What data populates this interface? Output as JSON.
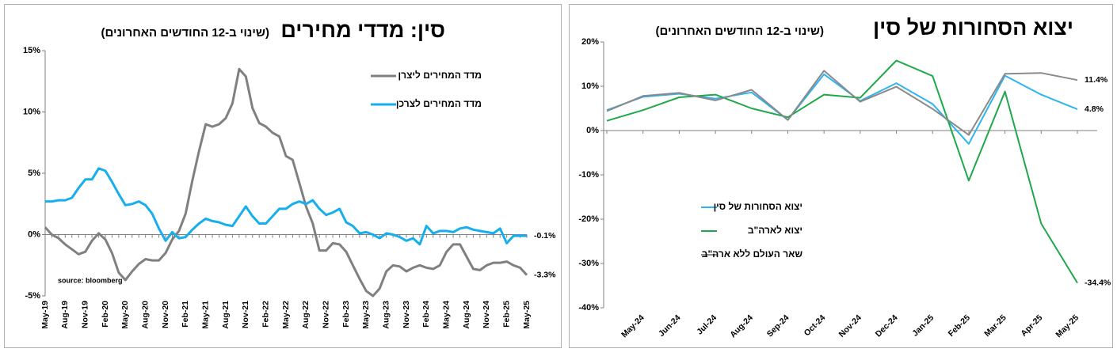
{
  "chart_data": [
    {
      "type": "line",
      "title": "סין: מדדי מחירים",
      "subtitle": "(שינוי ב-12 החודשים האחרונים)",
      "source": "source: bloomberg",
      "legend": "upper right",
      "categories": [
        "May-19",
        null,
        null,
        "Aug-19",
        null,
        null,
        "Nov-19",
        null,
        null,
        "Feb-20",
        null,
        null,
        "May-20",
        null,
        null,
        "Aug-20",
        null,
        null,
        "Nov-20",
        null,
        null,
        "Feb-21",
        null,
        null,
        "May-21",
        null,
        null,
        "Aug-21",
        null,
        null,
        "Nov-21",
        null,
        null,
        "Feb-22",
        null,
        null,
        "May-22",
        null,
        null,
        "Aug-22",
        null,
        null,
        "Nov-22",
        null,
        null,
        "Feb-23",
        null,
        null,
        "May-23",
        null,
        null,
        "Aug-23",
        null,
        null,
        "Nov-23",
        null,
        null,
        "Feb-24",
        null,
        null,
        "May-24",
        null,
        null,
        "Aug-24",
        null,
        null,
        "Nov-24",
        null,
        null,
        "Feb-25",
        null,
        null,
        "May-25"
      ],
      "ylim": [
        -5,
        15
      ],
      "yticks": [
        {
          "value": -5,
          "label": "-5%"
        },
        {
          "value": 0,
          "label": "0%"
        },
        {
          "value": 5,
          "label": "5%"
        },
        {
          "value": 10,
          "label": "10%"
        },
        {
          "value": 15,
          "label": "15%"
        }
      ],
      "series": [
        {
          "name": "מדד המחירים ליצרן",
          "color": "#808080",
          "values": [
            0.6,
            0.0,
            -0.3,
            -0.8,
            -1.2,
            -1.6,
            -1.4,
            -0.5,
            0.1,
            -0.4,
            -1.5,
            -3.1,
            -3.7,
            -3.0,
            -2.4,
            -2.0,
            -2.1,
            -2.1,
            -1.5,
            -0.4,
            0.3,
            1.7,
            4.4,
            6.8,
            9.0,
            8.8,
            9.0,
            9.5,
            10.7,
            13.5,
            12.9,
            10.3,
            9.1,
            8.8,
            8.3,
            8.0,
            6.4,
            6.1,
            4.2,
            2.3,
            0.9,
            -1.3,
            -1.3,
            -0.7,
            -0.8,
            -1.4,
            -2.5,
            -3.6,
            -4.6,
            -5.0,
            -4.4,
            -3.0,
            -2.5,
            -2.6,
            -3.0,
            -2.7,
            -2.5,
            -2.7,
            -2.8,
            -2.5,
            -1.4,
            -0.8,
            -0.8,
            -1.8,
            -2.8,
            -2.9,
            -2.5,
            -2.3,
            -2.3,
            -2.2,
            -2.5,
            -2.7,
            -3.3
          ],
          "value_labels": [
            null,
            null,
            null,
            null,
            null,
            null,
            null,
            null,
            null,
            null,
            null,
            null,
            null,
            null,
            null,
            null,
            null,
            null,
            null,
            null,
            null,
            null,
            null,
            null,
            null,
            null,
            null,
            null,
            null,
            null,
            null,
            null,
            null,
            null,
            null,
            null,
            null,
            null,
            null,
            null,
            null,
            null,
            null,
            null,
            null,
            null,
            null,
            null,
            null,
            null,
            null,
            null,
            null,
            null,
            null,
            null,
            null,
            null,
            null,
            null,
            null,
            null,
            null,
            null,
            null,
            null,
            null,
            null,
            null,
            null,
            null,
            null,
            "-3.3%"
          ]
        },
        {
          "name": "מדד המחירים לצרכן",
          "color": "#17aeee",
          "values": [
            2.7,
            2.7,
            2.8,
            2.8,
            3.0,
            3.8,
            4.5,
            4.5,
            5.4,
            5.2,
            4.3,
            3.3,
            2.4,
            2.5,
            2.7,
            2.4,
            1.7,
            0.5,
            -0.5,
            0.2,
            -0.3,
            -0.2,
            0.4,
            0.9,
            1.3,
            1.1,
            1.0,
            0.8,
            0.7,
            1.5,
            2.3,
            1.5,
            0.9,
            0.9,
            1.5,
            2.1,
            2.1,
            2.5,
            2.7,
            2.5,
            2.8,
            2.1,
            1.6,
            1.8,
            2.1,
            1.0,
            0.7,
            0.1,
            0.2,
            0.0,
            -0.3,
            0.1,
            0.0,
            -0.2,
            -0.5,
            -0.3,
            -0.8,
            0.7,
            0.1,
            0.3,
            0.3,
            0.2,
            0.5,
            0.6,
            0.4,
            0.3,
            0.2,
            0.1,
            0.5,
            -0.7,
            -0.1,
            -0.1,
            -0.1
          ],
          "value_labels": [
            null,
            null,
            null,
            null,
            null,
            null,
            null,
            null,
            null,
            null,
            null,
            null,
            null,
            null,
            null,
            null,
            null,
            null,
            null,
            null,
            null,
            null,
            null,
            null,
            null,
            null,
            null,
            null,
            null,
            null,
            null,
            null,
            null,
            null,
            null,
            null,
            null,
            null,
            null,
            null,
            null,
            null,
            null,
            null,
            null,
            null,
            null,
            null,
            null,
            null,
            null,
            null,
            null,
            null,
            null,
            null,
            null,
            null,
            null,
            null,
            null,
            null,
            null,
            null,
            null,
            null,
            null,
            null,
            null,
            null,
            null,
            null,
            "-0.1%"
          ]
        }
      ]
    },
    {
      "type": "line",
      "title": "יצוא הסחורות של סין",
      "subtitle": "(שינוי ב-12 החודשים האחרונים)",
      "legend": "lower left",
      "categories": [
        null,
        "May-24",
        "Jun-24",
        "Jul-24",
        "Aug-24",
        "Sep-24",
        "Oct-24",
        "Nov-24",
        "Dec-24",
        "Jan-25",
        "Feb-25",
        "Mar-25",
        "Apr-25",
        "May-25"
      ],
      "ylim": [
        -40,
        20
      ],
      "yticks": [
        {
          "value": -40,
          "label": "-40%"
        },
        {
          "value": -30,
          "label": "-30%"
        },
        {
          "value": -20,
          "label": "-20%"
        },
        {
          "value": -10,
          "label": "-10%"
        },
        {
          "value": 0,
          "label": "0%"
        },
        {
          "value": 10,
          "label": "10%"
        },
        {
          "value": 20,
          "label": "20%"
        }
      ],
      "series": [
        {
          "name": "יצוא הסחורות של סין",
          "color": "#2fb4ef",
          "values": [
            4.6,
            7.6,
            8.3,
            7.2,
            8.6,
            2.4,
            12.7,
            6.7,
            10.7,
            6.0,
            -3.0,
            12.4,
            8.1,
            4.8
          ],
          "value_labels": [
            null,
            null,
            null,
            null,
            null,
            null,
            null,
            null,
            null,
            null,
            null,
            null,
            null,
            "4.8%"
          ]
        },
        {
          "name": "יצוא לארה\"ב",
          "color": "#1fa84a",
          "values": [
            2.2,
            4.6,
            7.5,
            8.1,
            5.0,
            3.0,
            8.1,
            7.4,
            15.8,
            12.3,
            -11.3,
            8.8,
            -21.0,
            -34.4
          ],
          "value_labels": [
            null,
            null,
            null,
            null,
            null,
            null,
            null,
            null,
            null,
            null,
            null,
            null,
            null,
            "-34.4%"
          ]
        },
        {
          "name": "שאר העולם ללא ארה\"ב",
          "color": "#8a8a8a",
          "values": [
            4.4,
            7.8,
            8.5,
            6.8,
            9.2,
            2.4,
            13.5,
            6.5,
            9.9,
            4.9,
            -1.0,
            12.8,
            13.0,
            11.4
          ],
          "value_labels": [
            null,
            null,
            null,
            null,
            null,
            null,
            null,
            null,
            null,
            null,
            null,
            null,
            null,
            "11.4%"
          ]
        }
      ]
    }
  ]
}
